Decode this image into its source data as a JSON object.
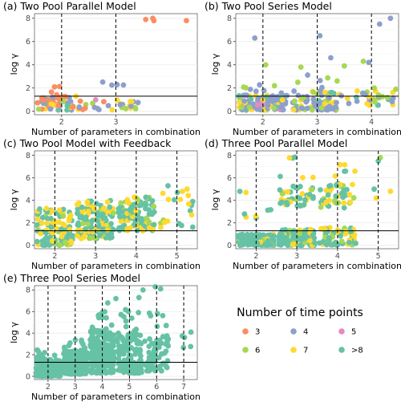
{
  "legend": {
    "title": "Number of time points",
    "entries": [
      {
        "label": "3",
        "color": "#FC8D62"
      },
      {
        "label": "4",
        "color": "#8DA0CB"
      },
      {
        "label": "5",
        "color": "#E78AC3"
      },
      {
        "label": "6",
        "color": "#A6D854"
      },
      {
        "label": "7",
        "color": "#FFD92F"
      },
      {
        "label": ">8",
        "color": "#66C2A5"
      }
    ]
  },
  "chart_data": [
    {
      "type": "scatter",
      "title": "(a) Two Pool Parallel Model",
      "xlabel": "Number of parameters in combination",
      "ylabel": "log γ",
      "xlim": [
        1.5,
        4.5
      ],
      "ylim": [
        -0.3,
        8.4
      ],
      "xticks": [
        2,
        3
      ],
      "yticks": [
        0,
        2,
        4,
        6,
        8
      ],
      "dashed_x": [
        2,
        3
      ],
      "hline": 1.3,
      "groups": [
        {
          "x": 2,
          "pts": 70,
          "spread": 0.45,
          "ylo": 0.1,
          "yhi": 1.3,
          "colors": {
            "3": 0.45,
            "4": 0.25,
            "6": 0.1,
            "7": 0.1,
            ">8": 0.1
          }
        },
        {
          "x": 2,
          "pts": 4,
          "spread": 0.2,
          "ylo": 1.4,
          "yhi": 2.2,
          "colors": {
            "3": 1
          }
        },
        {
          "x": 3,
          "pts": 24,
          "spread": 0.45,
          "ylo": 0.1,
          "yhi": 1.1,
          "colors": {
            "3": 0.1,
            "4": 0.4,
            "5": 0.1,
            "6": 0.15,
            "7": 0.25
          }
        },
        {
          "x": 3,
          "pts": 4,
          "spread": 0.4,
          "ylo": 1.8,
          "yhi": 3.0,
          "colors": {
            "4": 1
          }
        }
      ],
      "points": [
        [
          3.55,
          7.9,
          "3"
        ],
        [
          3.7,
          7.8,
          "3"
        ],
        [
          3.68,
          8.0,
          "3"
        ],
        [
          4.3,
          7.8,
          "3"
        ]
      ]
    },
    {
      "type": "scatter",
      "title": "(b) Two Pool Series Model",
      "xlabel": "Number of parameters in combination",
      "ylabel": "log γ",
      "xlim": [
        1.5,
        4.5
      ],
      "ylim": [
        -0.3,
        8.4
      ],
      "xticks": [
        2,
        3,
        4
      ],
      "yticks": [
        0,
        2,
        4,
        6,
        8
      ],
      "dashed_x": [
        2,
        3,
        4
      ],
      "hline": 1.3,
      "groups": [
        {
          "x": 2,
          "pts": 110,
          "spread": 0.45,
          "ylo": 0.1,
          "yhi": 1.4,
          "colors": {
            "4": 0.6,
            "6": 0.1,
            "7": 0.15,
            ">8": 0.1,
            "5": 0.05
          }
        },
        {
          "x": 2,
          "pts": 8,
          "spread": 0.4,
          "ylo": 1.4,
          "yhi": 2.5,
          "colors": {
            "4": 0.7,
            "6": 0.3
          }
        },
        {
          "x": 3,
          "pts": 80,
          "spread": 0.45,
          "ylo": 0.1,
          "yhi": 1.8,
          "colors": {
            "4": 0.5,
            "6": 0.2,
            "7": 0.2,
            ">8": 0.1
          }
        },
        {
          "x": 3,
          "pts": 6,
          "spread": 0.4,
          "ylo": 2.0,
          "yhi": 3.2,
          "colors": {
            "4": 0.6,
            "6": 0.4
          }
        },
        {
          "x": 4,
          "pts": 30,
          "spread": 0.45,
          "ylo": 0.5,
          "yhi": 1.8,
          "colors": {
            "4": 0.4,
            "6": 0.2,
            "7": 0.3,
            ">8": 0.1
          }
        }
      ],
      "points": [
        [
          1.85,
          6.3,
          "4"
        ],
        [
          2.05,
          4.0,
          "6"
        ],
        [
          2.7,
          3.8,
          "6"
        ],
        [
          3.05,
          6.5,
          "4"
        ],
        [
          3.25,
          4.6,
          "4"
        ],
        [
          3.5,
          3.9,
          "6"
        ],
        [
          3.95,
          4.2,
          "4"
        ],
        [
          4.15,
          7.5,
          "4"
        ],
        [
          4.35,
          8.0,
          "4"
        ],
        [
          3.85,
          4.3,
          "6"
        ],
        [
          4.05,
          2.0,
          "6"
        ],
        [
          4.45,
          1.9,
          "6"
        ]
      ]
    },
    {
      "type": "scatter",
      "title": "(c) Two Pool Model with Feedback",
      "xlabel": "Number of parameters in combination",
      "ylabel": "log γ",
      "xlim": [
        1.5,
        5.5
      ],
      "ylim": [
        -0.3,
        8.4
      ],
      "xticks": [
        2,
        3,
        4,
        5
      ],
      "yticks": [
        0,
        2,
        4,
        6,
        8
      ],
      "dashed_x": [
        2,
        3,
        4,
        5
      ],
      "hline": 1.3,
      "groups": [
        {
          "x": 2,
          "pts": 120,
          "spread": 0.45,
          "ylo": 0.0,
          "yhi": 3.3,
          "colors": {
            ">8": 0.55,
            "7": 0.35,
            "6": 0.1
          }
        },
        {
          "x": 3,
          "pts": 140,
          "spread": 0.45,
          "ylo": 0.6,
          "yhi": 4.0,
          "colors": {
            ">8": 0.55,
            "7": 0.35,
            "6": 0.1
          }
        },
        {
          "x": 4,
          "pts": 110,
          "spread": 0.45,
          "ylo": 1.3,
          "yhi": 4.3,
          "colors": {
            ">8": 0.55,
            "7": 0.35,
            "6": 0.1
          }
        },
        {
          "x": 5,
          "pts": 20,
          "spread": 0.4,
          "ylo": 1.5,
          "yhi": 4.8,
          "colors": {
            ">8": 0.5,
            "7": 0.4,
            "6": 0.1
          }
        }
      ],
      "points": [
        [
          4.78,
          5.3,
          ">8"
        ],
        [
          5.25,
          5.0,
          "7"
        ]
      ]
    },
    {
      "type": "scatter",
      "title": "(d) Three Pool Parallel Model",
      "xlabel": "Number of parameters in combination",
      "ylabel": "log γ",
      "xlim": [
        1.5,
        5.5
      ],
      "ylim": [
        -0.3,
        8.4
      ],
      "xticks": [
        2,
        3,
        4,
        5
      ],
      "yticks": [
        0,
        2,
        4,
        6,
        8
      ],
      "dashed_x": [
        2,
        3,
        4,
        5
      ],
      "hline": 1.3,
      "groups": [
        {
          "x": 2,
          "pts": 130,
          "spread": 0.45,
          "ylo": 0.0,
          "yhi": 1.0,
          "colors": {
            ">8": 0.8,
            "7": 0.1,
            "6": 0.1
          }
        },
        {
          "x": 2,
          "pts": 6,
          "spread": 0.4,
          "ylo": 2.4,
          "yhi": 3.2,
          "colors": {
            ">8": 0.6,
            "7": 0.4
          }
        },
        {
          "x": 3,
          "pts": 110,
          "spread": 0.45,
          "ylo": 0.0,
          "yhi": 1.4,
          "colors": {
            ">8": 0.7,
            "7": 0.2,
            "6": 0.1
          }
        },
        {
          "x": 3,
          "pts": 40,
          "spread": 0.45,
          "ylo": 3.5,
          "yhi": 5.3,
          "colors": {
            ">8": 0.5,
            "7": 0.35,
            "6": 0.15
          }
        },
        {
          "x": 3,
          "pts": 6,
          "spread": 0.45,
          "ylo": 6.0,
          "yhi": 8.0,
          "colors": {
            ">8": 0.5,
            "7": 0.5
          }
        },
        {
          "x": 4,
          "pts": 70,
          "spread": 0.45,
          "ylo": 0.0,
          "yhi": 1.6,
          "colors": {
            ">8": 0.6,
            "7": 0.25,
            "6": 0.15
          }
        },
        {
          "x": 4,
          "pts": 45,
          "spread": 0.45,
          "ylo": 3.3,
          "yhi": 5.5,
          "colors": {
            ">8": 0.5,
            "7": 0.35,
            "6": 0.15
          }
        },
        {
          "x": 4,
          "pts": 6,
          "spread": 0.45,
          "ylo": 6.0,
          "yhi": 7.2,
          "colors": {
            "7": 0.5,
            ">8": 0.5
          }
        }
      ],
      "points": [
        [
          1.6,
          4.8,
          ">8"
        ],
        [
          1.75,
          4.7,
          "7"
        ],
        [
          5.05,
          7.8,
          "6"
        ],
        [
          5.0,
          7.5,
          ">8"
        ],
        [
          4.9,
          5.0,
          ">8"
        ],
        [
          4.95,
          4.2,
          "7"
        ],
        [
          5.3,
          4.8,
          "7"
        ]
      ]
    },
    {
      "type": "scatter",
      "title": "(e) Three Pool Series Model",
      "xlabel": "Number of parameters in combination",
      "ylabel": "log γ",
      "xlim": [
        1.5,
        7.5
      ],
      "ylim": [
        -0.3,
        8.4
      ],
      "xticks": [
        2,
        3,
        4,
        5,
        6,
        7
      ],
      "yticks": [
        0,
        2,
        4,
        6,
        8
      ],
      "dashed_x": [
        2,
        3,
        4,
        5,
        6,
        7
      ],
      "hline": 1.3,
      "groups": [
        {
          "x": 2,
          "pts": 150,
          "spread": 0.45,
          "ylo": 0.0,
          "yhi": 1.6,
          "colors": {
            ">8": 1
          }
        },
        {
          "x": 2,
          "pts": 8,
          "spread": 0.4,
          "ylo": 1.6,
          "yhi": 2.6,
          "colors": {
            ">8": 1
          }
        },
        {
          "x": 3,
          "pts": 200,
          "spread": 0.45,
          "ylo": 0.2,
          "yhi": 2.4,
          "colors": {
            ">8": 1
          }
        },
        {
          "x": 3,
          "pts": 10,
          "spread": 0.45,
          "ylo": 2.4,
          "yhi": 3.4,
          "colors": {
            ">8": 1
          }
        },
        {
          "x": 4,
          "pts": 200,
          "spread": 0.45,
          "ylo": 0.3,
          "yhi": 4.2,
          "colors": {
            ">8": 1
          }
        },
        {
          "x": 4,
          "pts": 14,
          "spread": 0.4,
          "ylo": 4.2,
          "yhi": 6.0,
          "colors": {
            ">8": 1
          }
        },
        {
          "x": 5,
          "pts": 140,
          "spread": 0.45,
          "ylo": 0.3,
          "yhi": 4.0,
          "colors": {
            ">8": 1
          }
        },
        {
          "x": 5,
          "pts": 10,
          "spread": 0.4,
          "ylo": 4.0,
          "yhi": 6.2,
          "colors": {
            ">8": 1
          }
        },
        {
          "x": 6,
          "pts": 60,
          "spread": 0.45,
          "ylo": 0.5,
          "yhi": 3.8,
          "colors": {
            ">8": 1
          }
        },
        {
          "x": 6,
          "pts": 6,
          "spread": 0.4,
          "ylo": 4.5,
          "yhi": 6.0,
          "colors": {
            ">8": 1
          }
        },
        {
          "x": 7,
          "pts": 5,
          "spread": 0.3,
          "ylo": 2.0,
          "yhi": 4.5,
          "colors": {
            ">8": 1
          }
        }
      ],
      "points": [
        [
          4.5,
          7.2,
          ">8"
        ],
        [
          5.5,
          8.0,
          ">8"
        ],
        [
          5.95,
          8.3,
          ">8"
        ],
        [
          6.15,
          8.1,
          ">8"
        ],
        [
          5.35,
          7.3,
          ">8"
        ],
        [
          4.2,
          6.8,
          ">8"
        ]
      ]
    }
  ]
}
